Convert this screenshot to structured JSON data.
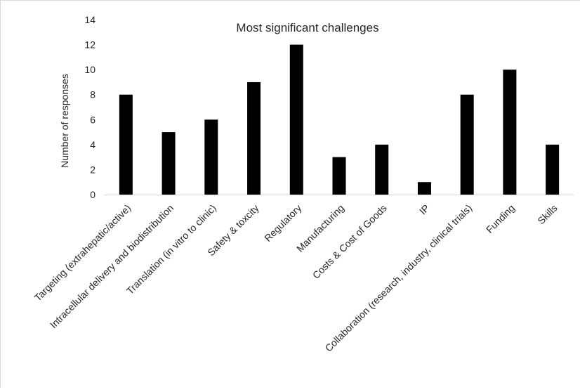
{
  "chart_data": {
    "type": "bar",
    "title": "Most significant challenges",
    "xlabel": "",
    "ylabel": "Number of responses",
    "ylim": [
      0,
      14
    ],
    "yticks": [
      0,
      2,
      4,
      6,
      8,
      10,
      12,
      14
    ],
    "grid": false,
    "legend": "none",
    "bar_color": "#000000",
    "categories": [
      "Targeting (extrahepatic/active)",
      "Intracellular delivery and biodistribution",
      "Translation (in vitro to clinic)",
      "Safety & toxcity",
      "Regulatory",
      "Manufacturing",
      "Costs & Cost of Goods",
      "IP",
      "Collaboration (research, industry, clinical trials)",
      "Funding",
      "Skills"
    ],
    "values": [
      8,
      5,
      6,
      9,
      12,
      3,
      4,
      1,
      8,
      10,
      4
    ]
  }
}
